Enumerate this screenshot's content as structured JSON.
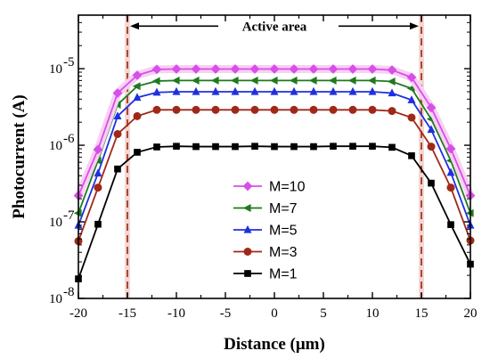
{
  "chart_data": {
    "type": "line",
    "xlabel": "Distance (μm)",
    "ylabel": "Photocurrent (A)",
    "xlim": [
      -20,
      20
    ],
    "ylim": [
      1e-08,
      5e-05
    ],
    "yscale": "log",
    "xticks": [
      -20,
      -15,
      -10,
      -5,
      0,
      5,
      10,
      15,
      20
    ],
    "xtick_labels": [
      "-20",
      "-15",
      "-10",
      "-5",
      "0",
      "5",
      "10",
      "15",
      "20"
    ],
    "yticks": [
      1e-08,
      1e-07,
      1e-06,
      1e-05
    ],
    "ytick_labels": [
      [
        "10",
        "-8"
      ],
      [
        "10",
        "-7"
      ],
      [
        "10",
        "-6"
      ],
      [
        "10",
        "-5"
      ]
    ],
    "grid": false,
    "legend_position": "lower-center",
    "x": [
      -20,
      -18,
      -16,
      -14,
      -12,
      -10,
      -8,
      -6,
      -4,
      -2,
      0,
      2,
      4,
      6,
      8,
      10,
      12,
      14,
      16,
      18,
      20
    ],
    "series": [
      {
        "name": "M=10",
        "color": "#d84ee8",
        "marker": "diamond",
        "values": [
          2.2e-07,
          8.8e-07,
          4.8e-06,
          8.2e-06,
          9.8e-06,
          9.9e-06,
          9.9e-06,
          9.9e-06,
          9.9e-06,
          9.9e-06,
          9.9e-06,
          9.9e-06,
          9.9e-06,
          9.9e-06,
          9.9e-06,
          9.9e-06,
          9.6e-06,
          7.7e-06,
          3.1e-06,
          9e-07,
          2.2e-07
        ]
      },
      {
        "name": "M=7",
        "color": "#1e7a1e",
        "marker": "triangle-left",
        "values": [
          1.3e-07,
          6.3e-07,
          3.4e-06,
          5.9e-06,
          6.9e-06,
          7e-06,
          7e-06,
          7e-06,
          7e-06,
          7e-06,
          7e-06,
          7e-06,
          7e-06,
          7e-06,
          7e-06,
          7e-06,
          6.8e-06,
          5.5e-06,
          2.2e-06,
          6.3e-07,
          1.3e-07
        ]
      },
      {
        "name": "M=5",
        "color": "#1f2fe0",
        "marker": "triangle-up",
        "values": [
          9e-08,
          4.3e-07,
          2.4e-06,
          4.2e-06,
          4.9e-06,
          5e-06,
          5e-06,
          5e-06,
          5e-06,
          5e-06,
          5e-06,
          5e-06,
          5e-06,
          5e-06,
          5e-06,
          5e-06,
          4.8e-06,
          3.9e-06,
          1.6e-06,
          4.4e-07,
          9e-08
        ]
      },
      {
        "name": "M=3",
        "color": "#a02818",
        "marker": "circle",
        "values": [
          5.6e-08,
          2.8e-07,
          1.4e-06,
          2.4e-06,
          2.9e-06,
          2.9e-06,
          2.9e-06,
          2.9e-06,
          2.9e-06,
          2.9e-06,
          2.9e-06,
          2.9e-06,
          2.9e-06,
          2.9e-06,
          2.9e-06,
          2.9e-06,
          2.8e-06,
          2.3e-06,
          9.6e-07,
          2.8e-07,
          5.7e-08
        ]
      },
      {
        "name": "M=1",
        "color": "#000000",
        "marker": "square",
        "values": [
          1.8e-08,
          9.3e-08,
          4.9e-07,
          8.1e-07,
          9.5e-07,
          9.7e-07,
          9.6e-07,
          9.6e-07,
          9.6e-07,
          9.7e-07,
          9.6e-07,
          9.6e-07,
          9.6e-07,
          9.7e-07,
          9.7e-07,
          9.7e-07,
          9.4e-07,
          7.3e-07,
          3.2e-07,
          9.2e-08,
          2.8e-08
        ]
      }
    ],
    "reference_lines": [
      {
        "x": -15,
        "color": "#a03a1a",
        "style": "dashed"
      },
      {
        "x": 15,
        "color": "#a03a1a",
        "style": "dashed"
      }
    ],
    "annotations": [
      {
        "text": "Active area",
        "arrow_from": -15,
        "arrow_to": 15,
        "y": 3.6e-05
      }
    ]
  }
}
